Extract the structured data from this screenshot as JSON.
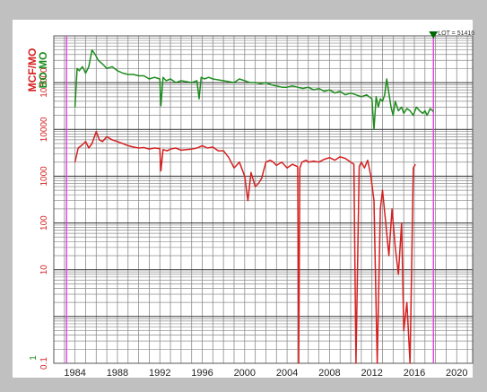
{
  "chart_data": {
    "type": "line",
    "title": "",
    "xlabel": "",
    "ylabel": "MCF/MO",
    "ylabel_secondary": "BO MO",
    "scale": "log",
    "grid": true,
    "legend": "none",
    "xlim": [
      1982.0,
      2021.5
    ],
    "ylim": [
      0.1,
      1000000
    ],
    "x_ticks": [
      {
        "value": 1984,
        "label": "1984"
      },
      {
        "value": 1988,
        "label": "1988"
      },
      {
        "value": 1992,
        "label": "1992"
      },
      {
        "value": 1996,
        "label": "1996"
      },
      {
        "value": 2000,
        "label": "2000"
      },
      {
        "value": 2004,
        "label": "2004"
      },
      {
        "value": 2008,
        "label": "2008"
      },
      {
        "value": 2012,
        "label": "2012"
      },
      {
        "value": 2016,
        "label": "2016"
      },
      {
        "value": 2020,
        "label": "2020"
      }
    ],
    "y_ticks": [
      {
        "value": 0.1,
        "label": "0.1",
        "color": "#d62020"
      },
      {
        "value": 10,
        "label": "10",
        "color": "#d62020"
      },
      {
        "value": 100,
        "label": "100",
        "color": "#d62020"
      },
      {
        "value": 1000,
        "label": "1000",
        "color": "#d62020"
      },
      {
        "value": 10000,
        "label": "10000",
        "color": "#d62020"
      },
      {
        "value": 100000,
        "label": "100000",
        "color": "#d62020"
      }
    ],
    "y_tick_bottom_secondary": {
      "value": 1,
      "label": "1",
      "color": "#1e8c1e"
    },
    "vertical_markers": [
      {
        "x": 1983.2,
        "color": "#e040e0"
      },
      {
        "x": 2017.8,
        "color": "#e040e0"
      }
    ],
    "annotation": {
      "text": "LOT = 51416",
      "x": 2017.8,
      "marker_color": "#006600"
    },
    "series": [
      {
        "color": "#1e8c1e",
        "x": [
          1984.0,
          1984.2,
          1984.4,
          1984.7,
          1985.0,
          1985.3,
          1985.6,
          1985.9,
          1986.2,
          1986.6,
          1987.0,
          1987.5,
          1988.0,
          1988.5,
          1989.0,
          1989.5,
          1990.0,
          1990.5,
          1991.0,
          1991.5,
          1992.0,
          1992.1,
          1992.3,
          1992.6,
          1993.0,
          1993.5,
          1994.0,
          1994.5,
          1995.0,
          1995.5,
          1995.7,
          1995.9,
          1996.2,
          1996.6,
          1997.0,
          1997.5,
          1998.0,
          1998.5,
          1999.0,
          1999.5,
          2000.0,
          2000.5,
          2001.0,
          2001.5,
          2002.0,
          2002.5,
          2003.0,
          2003.5,
          2004.0,
          2004.5,
          2005.0,
          2005.5,
          2006.0,
          2006.5,
          2007.0,
          2007.5,
          2008.0,
          2008.5,
          2009.0,
          2009.5,
          2010.0,
          2010.5,
          2011.0,
          2011.5,
          2012.0,
          2012.2,
          2012.4,
          2012.6,
          2012.8,
          2013.0,
          2013.2,
          2013.4,
          2013.6,
          2013.8,
          2014.0,
          2014.2,
          2014.5,
          2014.8,
          2015.0,
          2015.3,
          2015.6,
          2015.9,
          2016.2,
          2016.5,
          2016.8,
          2017.0,
          2017.2,
          2017.5,
          2017.8
        ],
        "y": [
          30000,
          200000,
          180000,
          220000,
          160000,
          220000,
          500000,
          400000,
          300000,
          250000,
          200000,
          220000,
          180000,
          160000,
          150000,
          150000,
          140000,
          140000,
          120000,
          130000,
          120000,
          32000,
          130000,
          110000,
          120000,
          100000,
          110000,
          105000,
          100000,
          110000,
          45000,
          130000,
          120000,
          130000,
          120000,
          115000,
          110000,
          105000,
          100000,
          120000,
          110000,
          100000,
          100000,
          95000,
          100000,
          90000,
          85000,
          80000,
          80000,
          85000,
          80000,
          75000,
          80000,
          70000,
          75000,
          65000,
          70000,
          60000,
          65000,
          55000,
          60000,
          55000,
          50000,
          55000,
          45000,
          10000,
          50000,
          30000,
          45000,
          40000,
          55000,
          120000,
          60000,
          30000,
          20000,
          40000,
          25000,
          30000,
          22000,
          28000,
          25000,
          20000,
          30000,
          25000,
          22000,
          25000,
          20000,
          28000,
          24000
        ]
      },
      {
        "color": "#d62020",
        "x": [
          1984.0,
          1984.3,
          1984.6,
          1985.0,
          1985.3,
          1985.6,
          1986.0,
          1986.3,
          1986.6,
          1987.0,
          1987.5,
          1988.0,
          1988.5,
          1989.0,
          1989.5,
          1990.0,
          1990.5,
          1991.0,
          1991.5,
          1992.0,
          1992.1,
          1992.3,
          1992.7,
          1993.0,
          1993.5,
          1994.0,
          1994.5,
          1995.0,
          1995.5,
          1996.0,
          1996.5,
          1997.0,
          1997.5,
          1998.0,
          1998.5,
          1999.0,
          1999.5,
          2000.0,
          2000.3,
          2000.6,
          2001.0,
          2001.3,
          2001.6,
          2002.0,
          2002.4,
          2002.7,
          2003.0,
          2003.5,
          2004.0,
          2004.5,
          2005.0,
          2005.1,
          2005.2,
          2005.4,
          2005.8,
          2006.0,
          2006.5,
          2007.0,
          2007.5,
          2008.0,
          2008.5,
          2009.0,
          2009.5,
          2010.0,
          2010.3,
          2010.5,
          2010.8,
          2011.0,
          2011.3,
          2011.6,
          2011.9,
          2012.2,
          2012.5,
          2012.8,
          2013.0,
          2013.3,
          2013.6,
          2013.9,
          2014.2,
          2014.5,
          2014.8,
          2015.0,
          2015.3,
          2015.6,
          2015.9,
          2016.1
        ],
        "y": [
          2000,
          4000,
          4500,
          5500,
          4000,
          5000,
          9000,
          6000,
          5500,
          7000,
          6000,
          5500,
          5000,
          4500,
          4200,
          4000,
          4100,
          3800,
          4000,
          3900,
          1300,
          3700,
          3500,
          3800,
          4000,
          3600,
          3700,
          3800,
          4000,
          4500,
          4000,
          4200,
          3500,
          3500,
          2500,
          1500,
          2000,
          1000,
          300,
          1200,
          600,
          700,
          900,
          2000,
          2200,
          2000,
          1700,
          2000,
          1500,
          1800,
          1600,
          0.1,
          1500,
          2000,
          2200,
          2000,
          2100,
          2000,
          2300,
          2500,
          2200,
          2600,
          2400,
          2000,
          1800,
          0.1,
          1600,
          2000,
          1500,
          2200,
          1000,
          300,
          0.1,
          200,
          500,
          100,
          20,
          200,
          30,
          8,
          100,
          0.5,
          2,
          0.1,
          1500,
          1800
        ]
      }
    ]
  }
}
